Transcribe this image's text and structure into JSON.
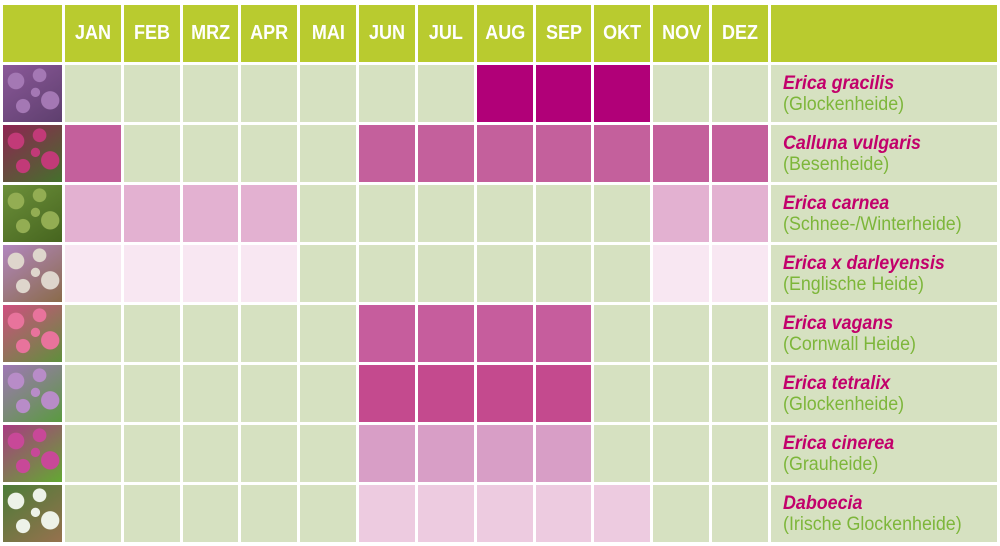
{
  "palette": {
    "page_background": "#ffffff",
    "header_green": "#b9cb2f",
    "cell_green": "#d6e1c1",
    "species_text_color": "#c2006b",
    "common_text_color": "#7db63a",
    "month_text_color": "#ffffff"
  },
  "chart_data": {
    "type": "heatmap",
    "title": "",
    "legend_position": "none",
    "columns": [
      "JAN",
      "FEB",
      "MRZ",
      "APR",
      "MAI",
      "JUN",
      "JUL",
      "AUG",
      "SEP",
      "OKT",
      "NOV",
      "DEZ"
    ],
    "empty_cell_color": "#d6e1c1",
    "header_color": "#b9cb2f",
    "rows": [
      {
        "id": "erica-gracilis",
        "species": "Erica gracilis",
        "common_name": "(Glockenheide)",
        "bloom_months": [
          "AUG",
          "SEP",
          "OKT"
        ],
        "bloom_color": "#b10078",
        "photo_icon": "purple-heather-spikes-photo",
        "photo_palette": [
          "#a478b4",
          "#8a5898",
          "#5e3f6e"
        ]
      },
      {
        "id": "calluna-vulgaris",
        "species": "Calluna vulgaris",
        "common_name": "(Besenheide)",
        "bloom_months": [
          "JAN",
          "JUN",
          "JUL",
          "AUG",
          "SEP",
          "OKT",
          "NOV",
          "DEZ"
        ],
        "bloom_color": "#c4609c",
        "photo_icon": "magenta-heather-photo",
        "photo_palette": [
          "#c23a78",
          "#8f2353",
          "#44702c"
        ]
      },
      {
        "id": "erica-carnea",
        "species": "Erica carnea",
        "common_name": "(Schnee-/Winterheide)",
        "bloom_months": [
          "JAN",
          "FEB",
          "MRZ",
          "APR",
          "NOV",
          "DEZ"
        ],
        "bloom_color": "#e3b1d1",
        "photo_icon": "green-foliage-photo",
        "photo_palette": [
          "#93ad53",
          "#6c8f3a",
          "#46651f"
        ]
      },
      {
        "id": "erica-x-darleyensis",
        "species": "Erica x darleyensis",
        "common_name": "(Englische Heide)",
        "bloom_months": [
          "JAN",
          "FEB",
          "MRZ",
          "APR",
          "NOV",
          "DEZ"
        ],
        "bloom_color": "#f8e7f2",
        "photo_icon": "white-purple-heather-photo",
        "photo_palette": [
          "#ded6cc",
          "#b287bf",
          "#8a6b4a"
        ]
      },
      {
        "id": "erica-vagans",
        "species": "Erica vagans",
        "common_name": "(Cornwall Heide)",
        "bloom_months": [
          "JUN",
          "JUL",
          "AUG",
          "SEP"
        ],
        "bloom_color": "#c65d9d",
        "photo_icon": "pink-heather-spikes-photo",
        "photo_palette": [
          "#e8739c",
          "#cf4f80",
          "#5f8f3c"
        ]
      },
      {
        "id": "erica-tetralix",
        "species": "Erica tetralix",
        "common_name": "(Glockenheide)",
        "bloom_months": [
          "JUN",
          "JUL",
          "AUG",
          "SEP"
        ],
        "bloom_color": "#c44a8e",
        "photo_icon": "lilac-heather-photo",
        "photo_palette": [
          "#b88cc8",
          "#9f77b5",
          "#5a9a40"
        ]
      },
      {
        "id": "erica-cinerea",
        "species": "Erica cinerea",
        "common_name": "(Grauheide)",
        "bloom_months": [
          "JUN",
          "JUL",
          "AUG",
          "SEP"
        ],
        "bloom_color": "#d89ec6",
        "photo_icon": "magenta-green-heather-photo",
        "photo_palette": [
          "#c84898",
          "#a93a82",
          "#63a832"
        ]
      },
      {
        "id": "daboecia",
        "species": "Daboecia",
        "common_name": "(Irische Glockenheide)",
        "bloom_months": [
          "JUN",
          "JUL",
          "AUG",
          "SEP",
          "OKT"
        ],
        "bloom_color": "#edcbe0",
        "photo_icon": "white-flowers-green-photo",
        "photo_palette": [
          "#edf2e8",
          "#4c7c38",
          "#96714e"
        ]
      }
    ]
  }
}
